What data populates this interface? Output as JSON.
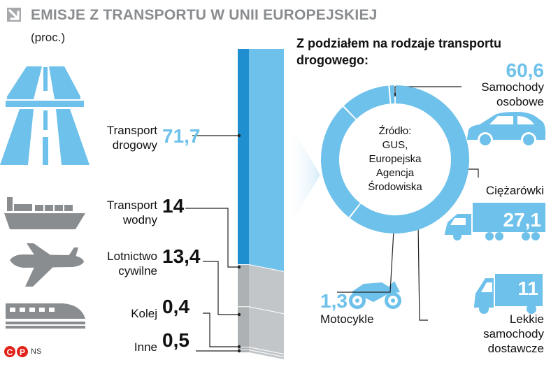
{
  "title": "EMISJE Z TRANSPORTU W UNII EUROPEJSKIEJ",
  "unit": "(proc.)",
  "subtitle": "Z podziałem na rodzaje transportu drogowego:",
  "center_text": [
    "Źródło:",
    "GUS,",
    "Europejska",
    "Agencja",
    "Środowiska"
  ],
  "credit": "NS",
  "credit_logo": "©℗",
  "colors": {
    "blue": "#6ec1ea",
    "dark_blue": "#1f8fcf",
    "gray": "#c3c6c9",
    "icon_gray": "#8a8d90",
    "text": "#111111"
  },
  "chart_data": [
    {
      "type": "bar",
      "stacked": true,
      "categories": [
        "Transport drogowy",
        "Transport wodny",
        "Lotnictwo cywilne",
        "Kolej",
        "Inne"
      ],
      "labels": [
        [
          "Transport",
          "drogowy"
        ],
        [
          "Transport",
          "wodny"
        ],
        [
          "Lotnictwo",
          "cywilne"
        ],
        [
          "Kolej"
        ],
        [
          "Inne"
        ]
      ],
      "values": [
        71.7,
        14,
        13.4,
        0.4,
        0.5
      ],
      "value_labels": [
        "71,7",
        "14",
        "13,4",
        "0,4",
        "0,5"
      ],
      "icons": [
        "highway-icon",
        "ship-icon",
        "airplane-icon",
        "train-icon",
        ""
      ]
    },
    {
      "type": "pie",
      "donut": true,
      "categories": [
        "Samochody osobowe",
        "Ciężarówki",
        "Lekkie samochody dostawcze",
        "Motocykle"
      ],
      "labels": [
        [
          "Samochody",
          "osobowe"
        ],
        [
          "Ciężarówki"
        ],
        [
          "Lekkie",
          "samochody",
          "dostawcze"
        ],
        [
          "Motocykle"
        ]
      ],
      "values": [
        60.6,
        27.1,
        11,
        1.3
      ],
      "value_labels": [
        "60,6",
        "27,1",
        "11",
        "1,3"
      ],
      "icons": [
        "car-icon",
        "truck-icon",
        "van-icon",
        "motorcycle-icon"
      ]
    }
  ]
}
